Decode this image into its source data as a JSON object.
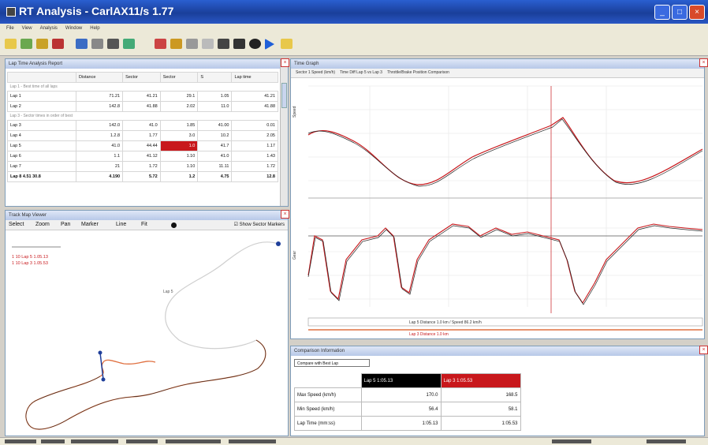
{
  "window": {
    "title": "RT Analysis - CarlAX11/s 1.77"
  },
  "menu": {
    "items": [
      "File",
      "View",
      "Analysis",
      "Window",
      "Help"
    ]
  },
  "panels": {
    "laps": {
      "title": "Lap Time Analysis Report"
    },
    "track": {
      "title": "Track Map Viewer"
    },
    "graph": {
      "title": "Time Graph"
    },
    "comparison": {
      "title": "Comparison Information"
    }
  },
  "lap_table": {
    "headers": [
      "",
      "Distance",
      "Sector",
      "Sector",
      "S",
      "Lap time"
    ],
    "groups": [
      {
        "label": "Lap 1 - Best time of all laps",
        "rows": [
          {
            "name": "Lap 1",
            "cells": [
              "71.21",
              "41.21",
              "29.1",
              "1.05",
              "41.21"
            ],
            "hl": []
          },
          {
            "name": "Lap 2",
            "cells": [
              "142.8",
              "41.88",
              "2.02",
              "11.0",
              "41.88"
            ],
            "hl": []
          }
        ]
      },
      {
        "label": "Lap 3 - Sector times in order of best",
        "rows": [
          {
            "name": "Lap 3",
            "cells": [
              "142.0",
              "41.0",
              "1.85",
              "41.00",
              "0.01"
            ],
            "hl": []
          },
          {
            "name": "Lap 4",
            "cells": [
              "1.2.8",
              "1.77",
              "3.0",
              "10.2",
              "2.05"
            ],
            "hl": []
          },
          {
            "name": "Lap 5",
            "cells": [
              "41.0",
              "44.44",
              "1.0",
              "41.7",
              "1.17"
            ],
            "hl": [
              2
            ]
          },
          {
            "name": "Lap 6",
            "cells": [
              "1.1",
              "41.12",
              "1.10",
              "41.0",
              "1.43"
            ],
            "hl": []
          },
          {
            "name": "Lap 7",
            "cells": [
              "21",
              "1.72",
              "1.10",
              "11.11",
              "1.72"
            ],
            "hl": []
          }
        ]
      }
    ],
    "total": {
      "name": "Lap 8 4.51 30.8",
      "cells": [
        "4.190",
        "5.72",
        "1.2",
        "4.75",
        "12.8"
      ]
    }
  },
  "track_panel": {
    "tools": [
      "Select",
      "Zoom",
      "Pan",
      "Marker",
      "Line",
      "Fit"
    ],
    "checkbox_label": "Show Sector Markers",
    "legend_a": "1 10 Lap 5 1.05.13",
    "legend_b": "1 10 Lap 3 1.05.53",
    "label": "Lap 5"
  },
  "graph_panel": {
    "tabs": [
      "Sector 1 Speed (km/h)",
      "Time Diff Lap 5 vs Lap 3",
      "Throttle/Brake Position Comparison"
    ],
    "axis_top": "Speed",
    "axis_bottom": "Gear",
    "readout_a": "Lap 5 Distance 1.0 km / Speed 86.2 km/h",
    "readout_b": "Lap 3 Distance 1.0 km"
  },
  "comparison": {
    "select_value": "Compare with Best Lap",
    "lap_a": "Lap 5 1:05.13",
    "lap_b": "Lap 3 1:05.53",
    "rows": [
      {
        "label": "Max Speed (km/h)",
        "a": "170.0",
        "b": "168.5"
      },
      {
        "label": "Min Speed (km/h)",
        "a": "56.4",
        "b": "58.1"
      },
      {
        "label": "Lap Time (mm:ss)",
        "a": "1:05.13",
        "b": "1:05.53"
      }
    ]
  },
  "colors": {
    "lap_a": "#000000",
    "lap_b": "#c8181c",
    "track_line": "#e07040",
    "accent": "#2a5fd0"
  }
}
